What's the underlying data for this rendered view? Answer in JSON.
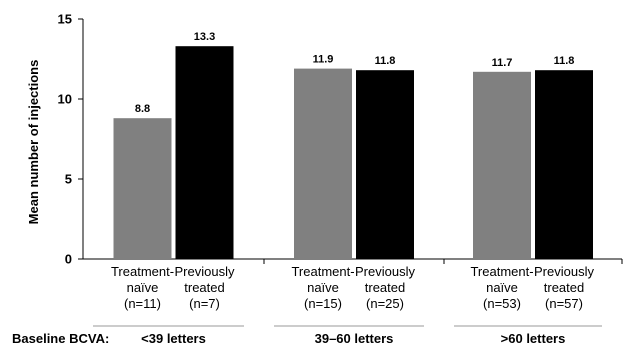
{
  "chart_data": {
    "type": "bar",
    "ylabel": "Mean number of injections",
    "ylim": [
      0,
      15
    ],
    "yticks": [
      0,
      5,
      10,
      15
    ],
    "grid": false,
    "row_label": "Baseline BCVA:",
    "colors": {
      "treatment_naive": "#808080",
      "previously_treated": "#000000"
    },
    "groups": [
      {
        "label": "<39 letters",
        "bars": [
          {
            "line1": "Treatment-",
            "line2": "naïve",
            "line3": "(n=11)",
            "value": 8.8,
            "value_label": "8.8",
            "color": "#808080"
          },
          {
            "line1": "Previously",
            "line2": "treated",
            "line3": "(n=7)",
            "value": 13.3,
            "value_label": "13.3",
            "color": "#000000"
          }
        ]
      },
      {
        "label": "39–60 letters",
        "bars": [
          {
            "line1": "Treatment-",
            "line2": "naïve",
            "line3": "(n=15)",
            "value": 11.9,
            "value_label": "11.9",
            "color": "#808080"
          },
          {
            "line1": "Previously",
            "line2": "treated",
            "line3": "(n=25)",
            "value": 11.8,
            "value_label": "11.8",
            "color": "#000000"
          }
        ]
      },
      {
        "label": ">60 letters",
        "bars": [
          {
            "line1": "Treatment-",
            "line2": "naïve",
            "line3": "(n=53)",
            "value": 11.7,
            "value_label": "11.7",
            "color": "#808080"
          },
          {
            "line1": "Previously",
            "line2": "treated",
            "line3": "(n=57)",
            "value": 11.8,
            "value_label": "11.8",
            "color": "#000000"
          }
        ]
      }
    ]
  }
}
